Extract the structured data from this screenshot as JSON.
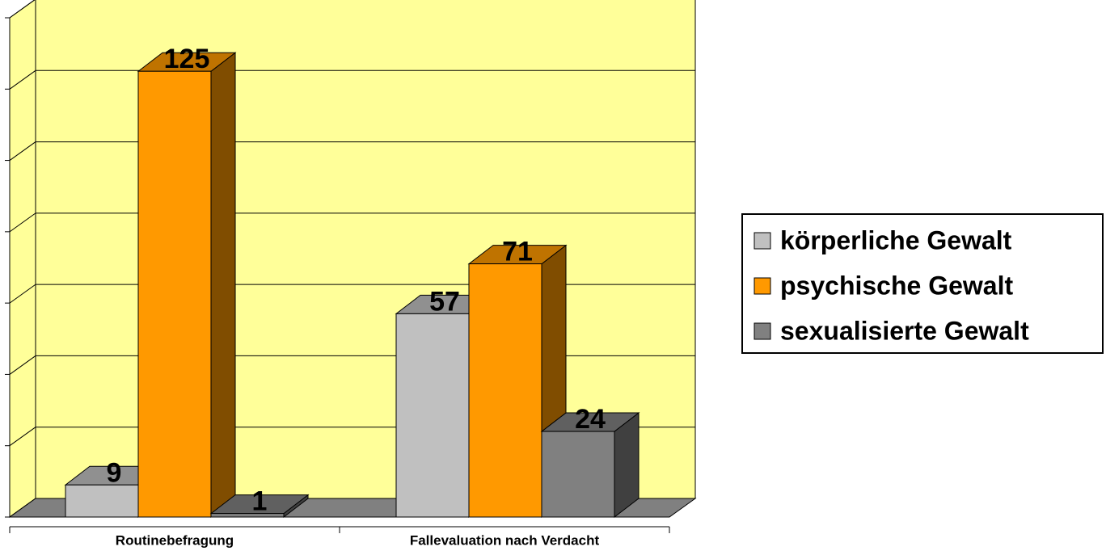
{
  "chart_data": {
    "type": "bar3d",
    "categories": [
      "Routinebefragung",
      "Fallevaluation nach Verdacht"
    ],
    "series": [
      {
        "name": "körperliche Gewalt",
        "color": "#c0c0c0",
        "values": [
          9,
          57
        ]
      },
      {
        "name": "psychische Gewalt",
        "color": "#ff9900",
        "values": [
          125,
          71
        ]
      },
      {
        "name": "sexualisierte Gewalt",
        "color": "#808080",
        "values": [
          1,
          24
        ]
      }
    ],
    "ylim": [
      0,
      140
    ],
    "yticks": [
      0,
      20,
      40,
      60,
      80,
      100,
      120,
      140
    ],
    "grid": true,
    "legend": "right"
  }
}
